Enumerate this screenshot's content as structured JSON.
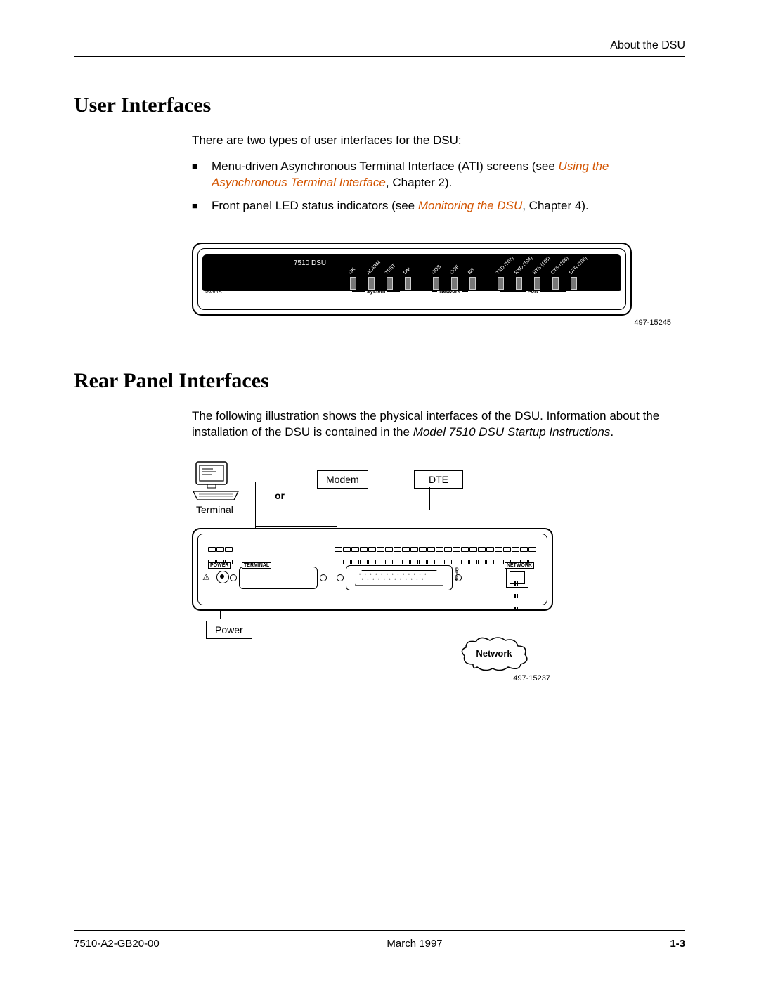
{
  "header": {
    "running": "About the DSU"
  },
  "section1": {
    "title": "User Interfaces",
    "intro": "There are two types of user interfaces for the DSU:",
    "bullets": [
      {
        "pre": "Menu-driven Asynchronous Terminal Interface (ATI) screens (see ",
        "xref": "Using the Asynchronous Terminal Interface",
        "post": ", Chapter 2)."
      },
      {
        "pre": "Front panel LED status indicators (see ",
        "xref": "Monitoring the DSU",
        "post": ", Chapter 4)."
      }
    ]
  },
  "front_panel": {
    "product": "7510 DSU",
    "model": "56/64K",
    "groups": [
      {
        "name": "System",
        "leds": [
          "OK",
          "ALARM",
          "TEST",
          "DM"
        ]
      },
      {
        "name": "Network",
        "leds": [
          "OOS",
          "OOF",
          "NS"
        ]
      },
      {
        "name": "Port",
        "leds": [
          "TXD (103)",
          "RXD (104)",
          "RTS (105)",
          "CTS (106)",
          "DTR (108)"
        ]
      }
    ],
    "caption": "497-15245"
  },
  "section2": {
    "title": "Rear Panel Interfaces",
    "para_pre": "The following illustration shows the physical interfaces of the DSU. Information about the installation of the DSU is contained in the ",
    "doc_ref": "Model 7510 DSU Startup Instructions",
    "para_post": "."
  },
  "rear": {
    "labels": {
      "terminal": "Terminal",
      "or": "or",
      "modem": "Modem",
      "dte": "DTE",
      "power": "Power",
      "network": "Network"
    },
    "port_labels": {
      "power": "POWER",
      "terminal": "TERMINAL",
      "dte": "D\nT\nE",
      "network": "NETWORK"
    },
    "caption": "497-15237"
  },
  "footer": {
    "doc": "7510-A2-GB20-00",
    "date": "March 1997",
    "page": "1-3"
  },
  "style": {
    "xref_color": "#d35400"
  }
}
